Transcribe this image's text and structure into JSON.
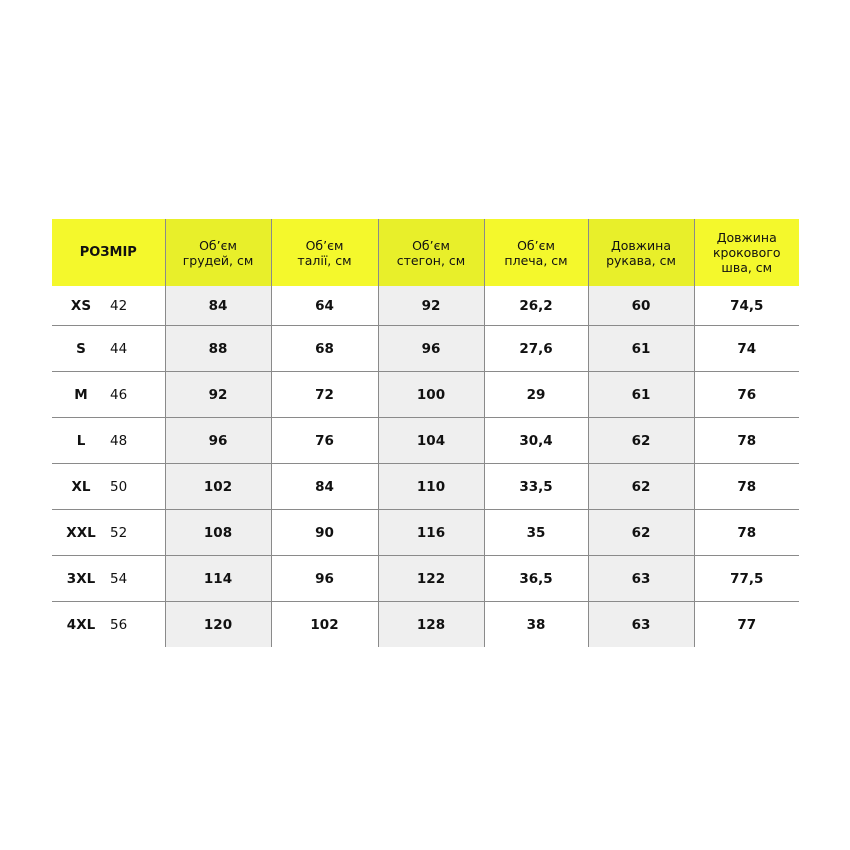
{
  "colors": {
    "header": "#f4f82c",
    "header_shaded": "#e8ef2a",
    "shaded_column": "#efefef"
  },
  "headers": [
    "РОЗМІР",
    "Об’єм\nгрудей, см",
    "Об’єм\nталії, см",
    "Об’єм\nстегон, см",
    "Об’єм\nплеча, см",
    "Довжина\nрукава, см",
    "Довжина\nкрокового\nшва, см"
  ],
  "rows": [
    {
      "size": "XS",
      "ua": "42",
      "values": [
        "84",
        "64",
        "92",
        "26,2",
        "60",
        "74,5"
      ]
    },
    {
      "size": "S",
      "ua": "44",
      "values": [
        "88",
        "68",
        "96",
        "27,6",
        "61",
        "74"
      ]
    },
    {
      "size": "M",
      "ua": "46",
      "values": [
        "92",
        "72",
        "100",
        "29",
        "61",
        "76"
      ]
    },
    {
      "size": "L",
      "ua": "48",
      "values": [
        "96",
        "76",
        "104",
        "30,4",
        "62",
        "78"
      ]
    },
    {
      "size": "XL",
      "ua": "50",
      "values": [
        "102",
        "84",
        "110",
        "33,5",
        "62",
        "78"
      ]
    },
    {
      "size": "XXL",
      "ua": "52",
      "values": [
        "108",
        "90",
        "116",
        "35",
        "62",
        "78"
      ]
    },
    {
      "size": "3XL",
      "ua": "54",
      "values": [
        "114",
        "96",
        "122",
        "36,5",
        "63",
        "77,5"
      ]
    },
    {
      "size": "4XL",
      "ua": "56",
      "values": [
        "120",
        "102",
        "128",
        "38",
        "63",
        "77"
      ]
    }
  ]
}
